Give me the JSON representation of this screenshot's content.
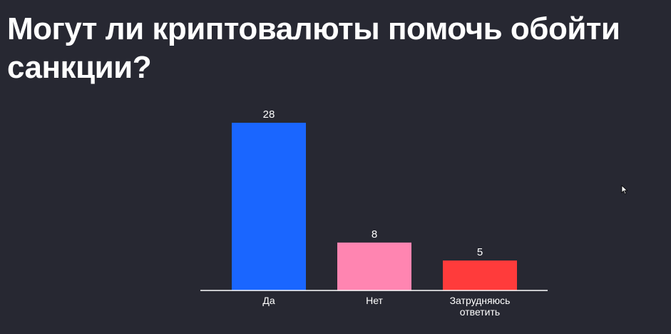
{
  "slide": {
    "title": "Могут ли криптовалюты помочь обойти санкции?"
  },
  "chart_data": {
    "type": "bar",
    "categories": [
      "Да",
      "Нет",
      "Затрудняюсь ответить"
    ],
    "category_lines": [
      [
        "Да"
      ],
      [
        "Нет"
      ],
      [
        "Затрудняюсь",
        "ответить"
      ]
    ],
    "values": [
      28,
      8,
      5
    ],
    "value_labels": [
      "28",
      "8",
      "5"
    ],
    "colors": [
      "#1a66ff",
      "#ff85b1",
      "#ff3b3b"
    ],
    "title": "",
    "xlabel": "",
    "ylabel": "",
    "ylim": [
      0,
      28
    ],
    "grid": false,
    "legend": "none"
  }
}
